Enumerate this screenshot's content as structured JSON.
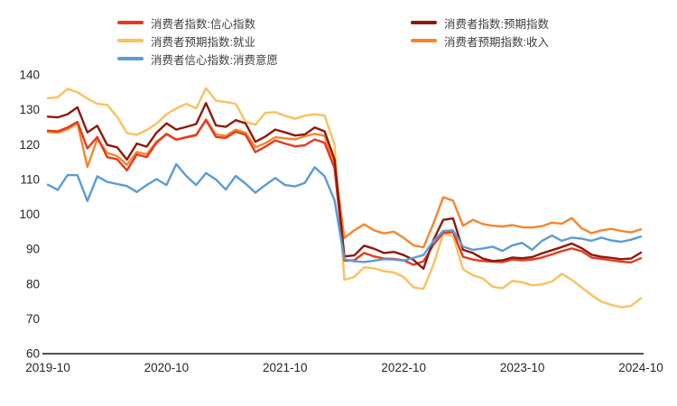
{
  "chart_data": {
    "type": "line",
    "title": "",
    "x_start": "2019-10",
    "x_end": "2024-10",
    "months": 61,
    "x_tick_labels": [
      "2019-10",
      "2020-10",
      "2021-10",
      "2022-10",
      "2023-10",
      "2024-10"
    ],
    "x_tick_month_indices": [
      0,
      12,
      24,
      36,
      48,
      60
    ],
    "ylim": [
      60,
      140
    ],
    "y_ticks": [
      140,
      130,
      120,
      110,
      100,
      90,
      80,
      70,
      60
    ],
    "grid": false,
    "legend_position": "top",
    "axis_color": "#1a1a1a",
    "tick_text_color": "#262626",
    "legend_text_color": "#404040",
    "background_color": "#ffffff",
    "draw_order": [
      2,
      3,
      0,
      1,
      4
    ],
    "series": [
      {
        "name": "消费者指数:信心指数",
        "color": "#e8391f",
        "values": [
          124.0,
          123.8,
          124.9,
          126.5,
          118.9,
          122.2,
          116.4,
          115.8,
          112.6,
          117.2,
          116.4,
          120.5,
          123.1,
          121.4,
          122.1,
          122.8,
          127.0,
          122.2,
          121.9,
          123.7,
          122.8,
          117.8,
          119.4,
          121.2,
          120.3,
          119.5,
          119.8,
          121.5,
          120.5,
          113.2,
          86.7,
          86.8,
          88.9,
          87.9,
          87.3,
          87.2,
          86.8,
          85.5,
          86.5,
          91.2,
          94.7,
          94.9,
          87.8,
          87.0,
          86.6,
          86.4,
          86.3,
          87.0,
          86.8,
          87.0,
          87.6,
          88.5,
          89.4,
          90.2,
          89.4,
          87.6,
          87.2,
          86.8,
          86.4,
          86.2,
          87.4
        ]
      },
      {
        "name": "消费者指数:预期指数",
        "color": "#8c1a0d",
        "values": [
          128.0,
          127.8,
          128.7,
          130.7,
          123.5,
          125.4,
          119.9,
          119.2,
          115.7,
          120.3,
          119.4,
          123.4,
          126.1,
          124.3,
          125.1,
          125.9,
          131.9,
          125.5,
          125.1,
          127.0,
          126.1,
          120.8,
          122.3,
          124.3,
          123.5,
          122.6,
          122.9,
          124.9,
          123.8,
          115.8,
          87.9,
          88.2,
          91.0,
          90.1,
          88.9,
          89.2,
          88.3,
          86.9,
          84.4,
          92.6,
          98.4,
          98.8,
          89.8,
          88.9,
          87.3,
          86.6,
          86.8,
          87.6,
          87.4,
          87.7,
          88.8,
          89.7,
          90.6,
          91.6,
          90.3,
          88.4,
          87.8,
          87.5,
          87.1,
          87.3,
          89.0
        ]
      },
      {
        "name": "消费者预期指数:就业",
        "color": "#fac15e",
        "values": [
          133.3,
          133.6,
          136.0,
          135.0,
          133.2,
          131.7,
          131.4,
          128.0,
          123.3,
          122.8,
          124.2,
          126.0,
          128.7,
          130.4,
          131.7,
          130.4,
          136.2,
          132.6,
          132.2,
          131.7,
          126.5,
          125.7,
          129.1,
          129.3,
          128.3,
          127.4,
          128.3,
          128.7,
          128.3,
          120.0,
          81.2,
          82.0,
          84.8,
          84.5,
          83.7,
          83.3,
          82.0,
          79.0,
          78.6,
          85.5,
          94.4,
          93.8,
          84.2,
          82.5,
          81.6,
          79.2,
          78.8,
          80.9,
          80.5,
          79.6,
          79.9,
          80.7,
          82.9,
          81.2,
          79.0,
          76.8,
          74.9,
          74.0,
          73.3,
          73.7,
          75.9
        ]
      },
      {
        "name": "消费者预期指数:收入",
        "color": "#f6862b",
        "values": [
          123.6,
          123.4,
          124.4,
          126.1,
          113.6,
          121.6,
          117.6,
          116.7,
          114.2,
          117.9,
          117.2,
          120.9,
          122.9,
          121.5,
          122.0,
          122.6,
          127.2,
          122.9,
          122.5,
          124.3,
          123.4,
          119.2,
          120.4,
          122.1,
          121.8,
          121.5,
          122.4,
          123.1,
          122.5,
          114.5,
          93.2,
          95.4,
          97.1,
          95.4,
          94.5,
          95.0,
          93.2,
          91.1,
          90.5,
          97.3,
          104.9,
          103.9,
          96.7,
          98.4,
          97.2,
          96.7,
          96.5,
          96.9,
          96.3,
          96.2,
          96.6,
          97.6,
          97.3,
          98.9,
          96.0,
          94.6,
          95.4,
          95.8,
          95.2,
          94.8,
          95.7
        ]
      },
      {
        "name": "消费者信心指数:消费意愿",
        "color": "#5b9bd5",
        "values": [
          108.5,
          107.0,
          111.3,
          111.2,
          103.8,
          110.9,
          109.3,
          108.7,
          108.1,
          106.4,
          108.4,
          110.1,
          108.4,
          114.4,
          111.0,
          108.4,
          111.8,
          110.0,
          107.1,
          111.0,
          108.8,
          106.2,
          108.4,
          110.4,
          108.4,
          108.0,
          109.0,
          113.5,
          110.9,
          104.0,
          87.1,
          86.5,
          86.3,
          86.7,
          87.1,
          87.0,
          86.7,
          87.5,
          88.3,
          92.3,
          95.2,
          95.4,
          90.7,
          89.8,
          90.2,
          90.7,
          89.5,
          91.1,
          91.8,
          89.8,
          92.4,
          93.9,
          92.4,
          93.3,
          93.0,
          92.4,
          93.3,
          92.5,
          92.1,
          92.7,
          93.6
        ]
      }
    ]
  }
}
